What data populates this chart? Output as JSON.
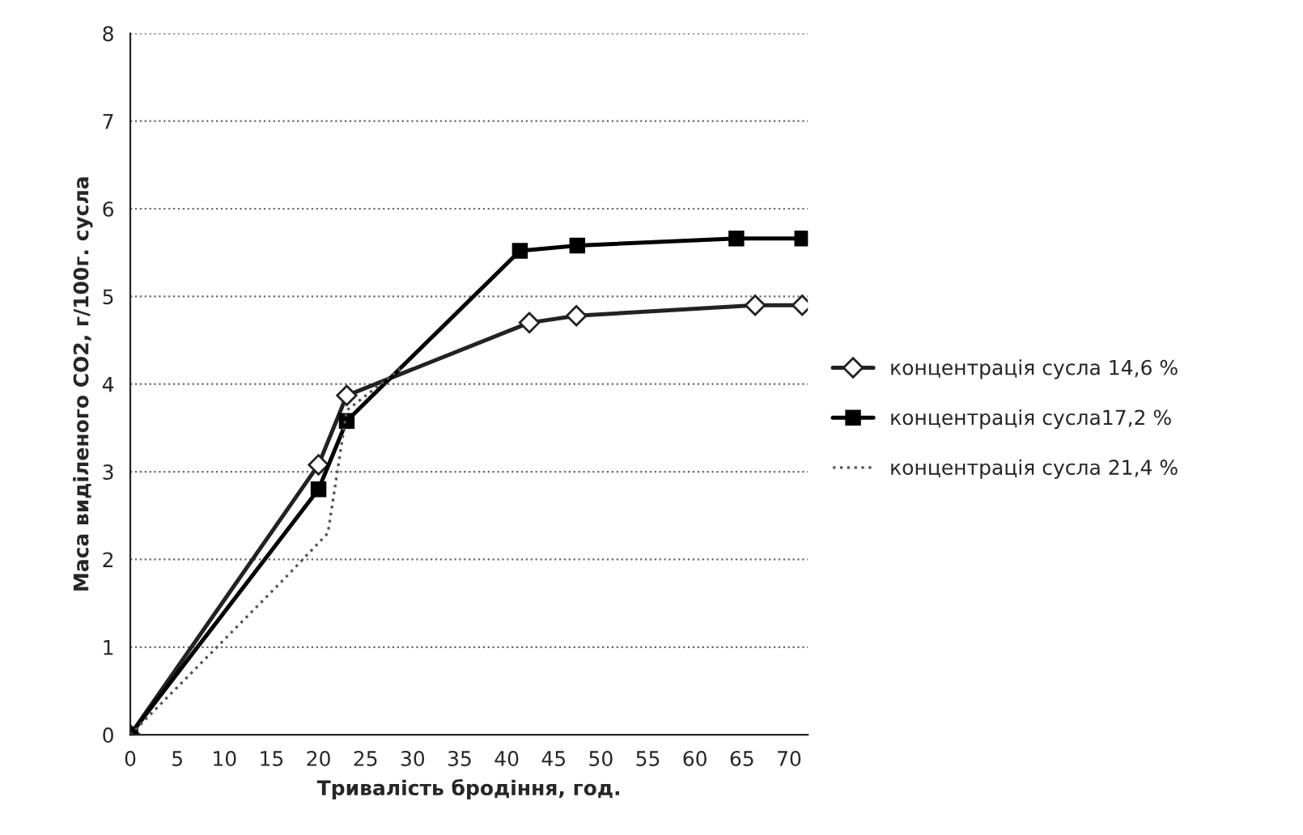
{
  "chart_data": {
    "type": "line",
    "xlabel": "Тривалість бродіння, год.",
    "ylabel": "Маса виділеного CO2, г/100г. сусла",
    "xlim": [
      0,
      72
    ],
    "xticks": [
      0,
      5,
      10,
      15,
      20,
      25,
      30,
      35,
      40,
      45,
      50,
      55,
      60,
      65,
      70
    ],
    "ylim": [
      0,
      8
    ],
    "yticks": [
      0,
      1,
      2,
      3,
      4,
      5,
      6,
      7,
      8
    ],
    "grid": "y",
    "legend": "right",
    "series": [
      {
        "name": "концентрація сусла 14,6 %",
        "color": "#222222",
        "marker": "diamond",
        "line_style": "solid",
        "x": [
          0,
          20,
          23,
          42.4,
          47.4,
          66.4,
          71.4
        ],
        "values": [
          0,
          3.08,
          3.87,
          4.7,
          4.78,
          4.9,
          4.9
        ]
      },
      {
        "name": "концентрація сусла17,2 %",
        "color": "#000000",
        "marker": "square",
        "line_style": "solid",
        "x": [
          0,
          20,
          23,
          41.4,
          47.5,
          64.4,
          71.4
        ],
        "values": [
          0,
          2.8,
          3.58,
          5.52,
          5.58,
          5.66,
          5.66
        ]
      },
      {
        "name": "концентрація сусла 21,4 %",
        "color": "#555555",
        "marker": "none",
        "line_style": "dotted",
        "x": [
          0,
          16.1,
          21,
          23,
          29
        ],
        "values": [
          0,
          1.75,
          2.3,
          3.7,
          4.2
        ]
      }
    ]
  }
}
